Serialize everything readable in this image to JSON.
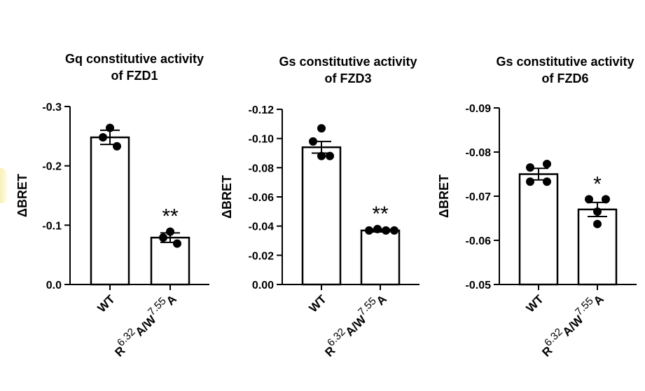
{
  "chart_data": [
    {
      "type": "bar",
      "title_line1": "Gq constitutive activity",
      "title_line2": "of FZD1",
      "ylabel": "ΔBRET",
      "ylim": [
        0.0,
        -0.3
      ],
      "y_ticks": [
        "-0.3",
        "-0.2",
        "-0.1",
        "0.0"
      ],
      "y_tick_values": [
        -0.3,
        -0.2,
        -0.1,
        0.0
      ],
      "categories": [
        "WT",
        "R6.32A/W7.55A"
      ],
      "values": [
        -0.248,
        -0.079
      ],
      "sem": [
        0.012,
        0.008
      ],
      "points": [
        [
          -0.264,
          -0.248,
          -0.233
        ],
        [
          -0.089,
          -0.079,
          -0.069
        ]
      ],
      "significance": [
        "",
        "**"
      ]
    },
    {
      "type": "bar",
      "title_line1": "Gs constitutive activity",
      "title_line2": "of FZD3",
      "ylabel": "ΔBRET",
      "ylim": [
        0.0,
        -0.12
      ],
      "y_ticks": [
        "-0.12",
        "-0.10",
        "-0.08",
        "-0.06",
        "-0.04",
        "-0.02",
        "0.00"
      ],
      "y_tick_values": [
        -0.12,
        -0.1,
        -0.08,
        -0.06,
        -0.04,
        -0.02,
        0.0
      ],
      "categories": [
        "WT",
        "R6.32A/W7.55A"
      ],
      "values": [
        -0.094,
        -0.037
      ],
      "sem": [
        0.004,
        0.001
      ],
      "points": [
        [
          -0.107,
          -0.098,
          -0.088,
          -0.088
        ],
        [
          -0.037,
          -0.038,
          -0.037,
          -0.037
        ]
      ],
      "significance": [
        "",
        "**"
      ]
    },
    {
      "type": "bar",
      "title_line1": "Gs constitutive activity",
      "title_line2": "of FZD6",
      "ylabel": "ΔBRET",
      "ylim": [
        -0.05,
        -0.09
      ],
      "y_ticks": [
        "-0.09",
        "-0.08",
        "-0.07",
        "-0.06",
        "-0.05"
      ],
      "y_tick_values": [
        -0.09,
        -0.08,
        -0.07,
        -0.06,
        -0.05
      ],
      "categories": [
        "WT",
        "R6.32A/W7.55A"
      ],
      "values": [
        -0.075,
        -0.067
      ],
      "sem": [
        0.0013,
        0.0016
      ],
      "points": [
        [
          -0.0765,
          -0.0773,
          -0.0733,
          -0.0733
        ],
        [
          -0.0693,
          -0.0693,
          -0.0665,
          -0.0637
        ]
      ],
      "significance": [
        "",
        "*"
      ]
    }
  ],
  "mutant_label": {
    "R": "R",
    "sup1": "6.32",
    "mid": "A/W",
    "sup2": "7.55",
    "A": "A"
  }
}
